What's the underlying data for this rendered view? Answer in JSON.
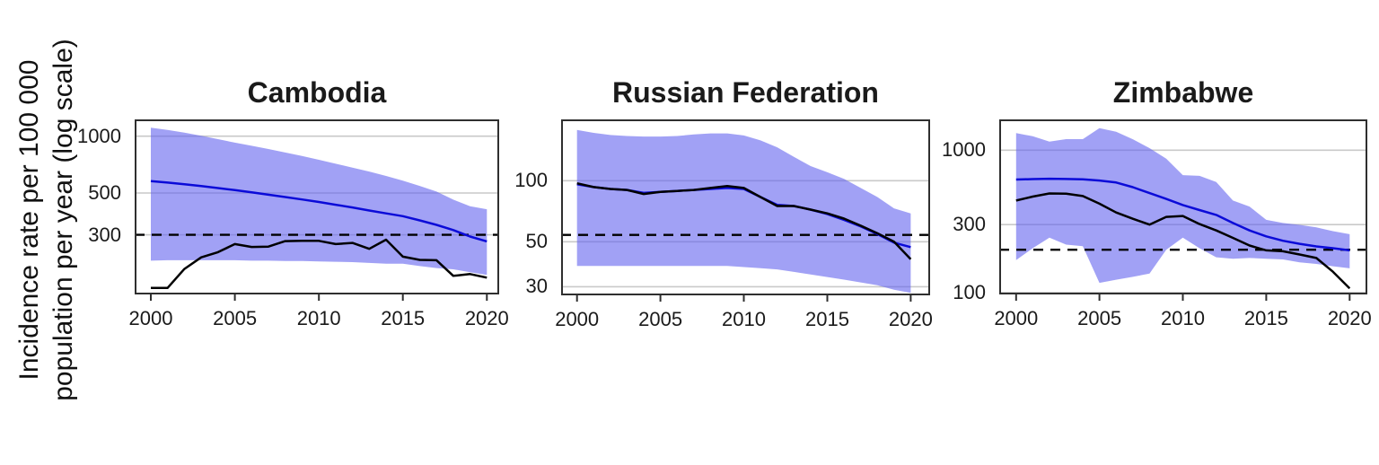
{
  "figure": {
    "y_axis_label_line1": "Incidence rate per 100 000",
    "y_axis_label_line2": "population per year (log scale)"
  },
  "colors": {
    "band_fill": "#6363EE",
    "band_opacity": "0.6",
    "blue_line": "#0B0BD8",
    "black_line": "#000000",
    "dashed_line": "#000000",
    "gridline": "#C9C9C9",
    "panel_border": "#2F2F2F",
    "axis_text": "#1A1A1A"
  },
  "x_ticks": [
    2000,
    2005,
    2010,
    2015,
    2020
  ],
  "chart_data": [
    {
      "type": "line",
      "title": "Cambodia",
      "ylog": true,
      "grid": true,
      "x": [
        2000,
        2001,
        2002,
        2003,
        2004,
        2005,
        2006,
        2007,
        2008,
        2009,
        2010,
        2011,
        2012,
        2013,
        2014,
        2015,
        2016,
        2017,
        2018,
        2019,
        2020
      ],
      "series": [
        {
          "name": "blue estimate line",
          "values": [
            578,
            568,
            556,
            544,
            531,
            518,
            504,
            490,
            476,
            462,
            448,
            433,
            419,
            404,
            390,
            377,
            358,
            339,
            318,
            294,
            277
          ]
        },
        {
          "name": "black observed line",
          "values": [
            157,
            157,
            198,
            228,
            243,
            268,
            259,
            260,
            278,
            279,
            279,
            268,
            272,
            253,
            283,
            230,
            221,
            220,
            182,
            186,
            178
          ]
        }
      ],
      "band": {
        "name": "uncertainty interval",
        "upper": [
          1110,
          1080,
          1045,
          1005,
          965,
          925,
          890,
          855,
          820,
          785,
          750,
          715,
          682,
          650,
          616,
          581,
          545,
          509,
          461,
          425,
          410
        ],
        "lower": [
          219,
          220,
          220,
          220,
          220,
          220,
          219,
          219,
          218,
          218,
          217,
          216,
          215,
          213,
          211,
          211,
          205,
          200,
          197,
          190,
          184
        ]
      },
      "dashed_reference_y": 300,
      "y_ticks": [
        1000,
        500,
        300
      ],
      "ylim": [
        145,
        1228
      ],
      "xlim": [
        1999.04,
        2020.73
      ]
    },
    {
      "type": "line",
      "title": "Russian Federation",
      "ylog": true,
      "grid": true,
      "x": [
        2000,
        2001,
        2002,
        2003,
        2004,
        2005,
        2006,
        2007,
        2008,
        2009,
        2010,
        2011,
        2012,
        2013,
        2014,
        2015,
        2016,
        2017,
        2018,
        2019,
        2020
      ],
      "series": [
        {
          "name": "blue estimate line",
          "values": [
            96,
            93,
            91,
            90,
            87,
            88,
            89,
            90,
            91,
            92,
            91,
            83,
            76,
            75,
            72,
            68.5,
            64,
            59.5,
            54.5,
            49.5,
            47
          ]
        },
        {
          "name": "black observed line",
          "values": [
            97,
            93,
            91,
            90,
            86,
            88,
            89,
            90,
            92,
            94,
            92,
            83,
            75,
            75,
            72,
            69,
            65,
            60,
            55,
            50,
            41
          ]
        }
      ],
      "band": {
        "name": "uncertainty interval",
        "upper": [
          178,
          172,
          168,
          166,
          165,
          165,
          166,
          169,
          171,
          171,
          167,
          158,
          146,
          131,
          118,
          110,
          102,
          92,
          83,
          73,
          69
        ],
        "lower": [
          38,
          38,
          38,
          38,
          38,
          38,
          38,
          38,
          38,
          38,
          37.5,
          37,
          36.5,
          35.5,
          34.5,
          33.5,
          32.5,
          31.5,
          30.5,
          29,
          28
        ]
      },
      "dashed_reference_y": 54,
      "y_ticks": [
        100,
        50,
        30
      ],
      "ylim": [
        27.2,
        200.5
      ],
      "xlim": [
        1999.05,
        2021.16
      ]
    },
    {
      "type": "line",
      "title": "Zimbabwe",
      "ylog": true,
      "grid": true,
      "x": [
        2000,
        2001,
        2002,
        2003,
        2004,
        2005,
        2006,
        2007,
        2008,
        2009,
        2010,
        2011,
        2012,
        2013,
        2014,
        2015,
        2016,
        2017,
        2018,
        2019,
        2020
      ],
      "series": [
        {
          "name": "blue estimate line",
          "values": [
            622,
            627,
            630,
            628,
            625,
            612,
            593,
            550,
            500,
            455,
            412,
            380,
            351,
            308,
            273,
            248,
            231,
            220,
            211,
            205,
            198
          ]
        },
        {
          "name": "black observed line",
          "values": [
            443,
            472,
            497,
            495,
            476,
            421,
            365,
            330,
            300,
            340,
            345,
            303,
            273,
            242,
            214,
            198,
            195,
            185,
            175,
            140,
            107
          ]
        }
      ],
      "band": {
        "name": "uncertainty interval",
        "upper": [
          1318,
          1253,
          1148,
          1196,
          1196,
          1429,
          1350,
          1195,
          1035,
          873,
          668,
          660,
          598,
          443,
          402,
          324,
          308,
          299,
          287,
          270,
          257
        ],
        "lower": [
          169,
          205,
          243,
          217,
          212,
          117,
          123,
          129,
          136,
          200,
          243,
          205,
          177,
          173,
          175,
          173,
          171,
          163,
          159,
          153,
          148
        ]
      },
      "dashed_reference_y": 200,
      "y_ticks": [
        1000,
        300,
        100
      ],
      "ylim": [
        97,
        1646
      ],
      "xlim": [
        1998.99,
        2021.06
      ]
    }
  ]
}
